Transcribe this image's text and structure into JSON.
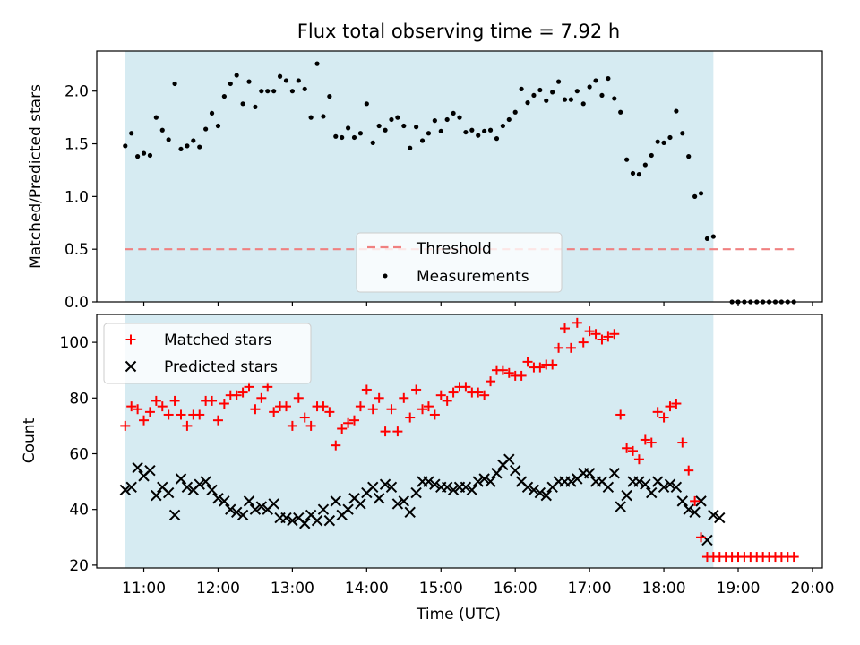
{
  "chart_data": [
    {
      "type": "scatter",
      "title": "Flux total observing time = 7.92 h",
      "xlabel": "",
      "ylabel": "Matched/Predicted stars",
      "ylim": [
        0,
        2.38
      ],
      "yticks": [
        "0.0",
        "0.5",
        "1.0",
        "1.5",
        "2.0"
      ],
      "xlim": [
        "10:22",
        "20:08"
      ],
      "shaded_span": [
        "10:45",
        "18:40"
      ],
      "shade_color": "#add8e6",
      "legend_position": "lower-center",
      "threshold": {
        "name": "Threshold",
        "value": 0.5,
        "x_range": [
          "10:45",
          "19:45"
        ],
        "color": "#f08080"
      },
      "series": [
        {
          "name": "Measurements",
          "color": "#000000",
          "x": [
            "10:45",
            "10:50",
            "10:55",
            "11:00",
            "11:05",
            "11:10",
            "11:15",
            "11:20",
            "11:25",
            "11:30",
            "11:35",
            "11:40",
            "11:45",
            "11:50",
            "11:55",
            "12:00",
            "12:05",
            "12:10",
            "12:15",
            "12:20",
            "12:25",
            "12:30",
            "12:35",
            "12:40",
            "12:45",
            "12:50",
            "12:55",
            "13:00",
            "13:05",
            "13:10",
            "13:15",
            "13:20",
            "13:25",
            "13:30",
            "13:35",
            "13:40",
            "13:45",
            "13:50",
            "13:55",
            "14:00",
            "14:05",
            "14:10",
            "14:15",
            "14:20",
            "14:25",
            "14:30",
            "14:35",
            "14:40",
            "14:45",
            "14:50",
            "14:55",
            "15:00",
            "15:05",
            "15:10",
            "15:15",
            "15:20",
            "15:25",
            "15:30",
            "15:35",
            "15:40",
            "15:45",
            "15:50",
            "15:55",
            "16:00",
            "16:05",
            "16:10",
            "16:15",
            "16:20",
            "16:25",
            "16:30",
            "16:35",
            "16:40",
            "16:45",
            "16:50",
            "16:55",
            "17:00",
            "17:05",
            "17:10",
            "17:15",
            "17:20",
            "17:25",
            "17:30",
            "17:35",
            "17:40",
            "17:45",
            "17:50",
            "17:55",
            "18:00",
            "18:05",
            "18:10",
            "18:15",
            "18:20",
            "18:25",
            "18:30",
            "18:35",
            "18:40",
            "18:55",
            "19:00",
            "19:05",
            "19:10",
            "19:15",
            "19:20",
            "19:25",
            "19:30",
            "19:35",
            "19:40",
            "19:45"
          ],
          "y": [
            1.48,
            1.6,
            1.38,
            1.41,
            1.39,
            1.75,
            1.63,
            1.54,
            2.07,
            1.45,
            1.48,
            1.53,
            1.47,
            1.64,
            1.79,
            1.67,
            1.95,
            2.07,
            2.15,
            1.88,
            2.09,
            1.85,
            2.0,
            2.0,
            2.0,
            2.14,
            2.1,
            2.0,
            2.1,
            2.02,
            1.75,
            2.26,
            1.76,
            1.95,
            1.57,
            1.56,
            1.65,
            1.56,
            1.6,
            1.88,
            1.51,
            1.67,
            1.63,
            1.73,
            1.75,
            1.67,
            1.46,
            1.66,
            1.53,
            1.6,
            1.72,
            1.62,
            1.73,
            1.79,
            1.75,
            1.61,
            1.63,
            1.58,
            1.62,
            1.63,
            1.55,
            1.67,
            1.73,
            1.8,
            2.02,
            1.89,
            1.96,
            2.01,
            1.91,
            1.99,
            2.09,
            1.92,
            1.92,
            2.0,
            1.88,
            2.04,
            2.1,
            1.96,
            2.12,
            1.93,
            1.8,
            1.35,
            1.22,
            1.21,
            1.3,
            1.39,
            1.52,
            1.51,
            1.56,
            1.81,
            1.6,
            1.38,
            1.0,
            1.03,
            0.6,
            0.62,
            0,
            0,
            0,
            0,
            0,
            0,
            0,
            0,
            0,
            0,
            0
          ]
        }
      ]
    },
    {
      "type": "scatter",
      "xlabel": "Time (UTC)",
      "ylabel": "Count",
      "ylim": [
        19,
        110
      ],
      "yticks": [
        "20",
        "40",
        "60",
        "80",
        "100"
      ],
      "xticks": [
        "11:00",
        "12:00",
        "13:00",
        "14:00",
        "15:00",
        "16:00",
        "17:00",
        "18:00",
        "19:00",
        "20:00"
      ],
      "xlim": [
        "10:22",
        "20:08"
      ],
      "shaded_span": [
        "10:45",
        "18:40"
      ],
      "shade_color": "#add8e6",
      "legend_position": "top-left",
      "series": [
        {
          "name": "Matched stars",
          "marker": "+",
          "color": "#ff0000",
          "x": [
            "10:45",
            "10:50",
            "10:55",
            "11:00",
            "11:05",
            "11:10",
            "11:15",
            "11:20",
            "11:25",
            "11:30",
            "11:35",
            "11:40",
            "11:45",
            "11:50",
            "11:55",
            "12:00",
            "12:05",
            "12:10",
            "12:15",
            "12:20",
            "12:25",
            "12:30",
            "12:35",
            "12:40",
            "12:45",
            "12:50",
            "12:55",
            "13:00",
            "13:05",
            "13:10",
            "13:15",
            "13:20",
            "13:25",
            "13:30",
            "13:35",
            "13:40",
            "13:45",
            "13:50",
            "13:55",
            "14:00",
            "14:05",
            "14:10",
            "14:15",
            "14:20",
            "14:25",
            "14:30",
            "14:35",
            "14:40",
            "14:45",
            "14:50",
            "14:55",
            "15:00",
            "15:05",
            "15:10",
            "15:15",
            "15:20",
            "15:25",
            "15:30",
            "15:35",
            "15:40",
            "15:45",
            "15:50",
            "15:55",
            "16:00",
            "16:05",
            "16:10",
            "16:15",
            "16:20",
            "16:25",
            "16:30",
            "16:35",
            "16:40",
            "16:45",
            "16:50",
            "16:55",
            "17:00",
            "17:05",
            "17:10",
            "17:15",
            "17:20",
            "17:25",
            "17:30",
            "17:35",
            "17:40",
            "17:45",
            "17:50",
            "17:55",
            "18:00",
            "18:05",
            "18:10",
            "18:15",
            "18:20",
            "18:25",
            "18:30",
            "18:35",
            "18:40",
            "18:45",
            "18:50",
            "18:55",
            "19:00",
            "19:05",
            "19:10",
            "19:15",
            "19:20",
            "19:25",
            "19:30",
            "19:35",
            "19:40",
            "19:45"
          ],
          "y": [
            70,
            77,
            76,
            72,
            75,
            79,
            77,
            74,
            79,
            74,
            70,
            74,
            74,
            79,
            79,
            72,
            78,
            81,
            81,
            82,
            84,
            76,
            80,
            84,
            75,
            77,
            77,
            70,
            80,
            73,
            70,
            77,
            77,
            75,
            63,
            69,
            71,
            72,
            77,
            83,
            76,
            80,
            68,
            76,
            68,
            80,
            73,
            83,
            76,
            77,
            74,
            81,
            79,
            82,
            84,
            84,
            82,
            82,
            81,
            86,
            90,
            90,
            89,
            88,
            88,
            93,
            91,
            91,
            92,
            92,
            98,
            105,
            98,
            107,
            100,
            104,
            103,
            101,
            102,
            103,
            74,
            62,
            61,
            58,
            65,
            64,
            75,
            73,
            77,
            78,
            64,
            54,
            43,
            30,
            23,
            23,
            23,
            23,
            23,
            23,
            23,
            23,
            23,
            23,
            23,
            23,
            23,
            23,
            23
          ]
        },
        {
          "name": "Predicted stars",
          "marker": "x",
          "color": "#000000",
          "x": [
            "10:45",
            "10:50",
            "10:55",
            "11:00",
            "11:05",
            "11:10",
            "11:15",
            "11:20",
            "11:25",
            "11:30",
            "11:35",
            "11:40",
            "11:45",
            "11:50",
            "11:55",
            "12:00",
            "12:05",
            "12:10",
            "12:15",
            "12:20",
            "12:25",
            "12:30",
            "12:35",
            "12:40",
            "12:45",
            "12:50",
            "12:55",
            "13:00",
            "13:05",
            "13:10",
            "13:15",
            "13:20",
            "13:25",
            "13:30",
            "13:35",
            "13:40",
            "13:45",
            "13:50",
            "13:55",
            "14:00",
            "14:05",
            "14:10",
            "14:15",
            "14:20",
            "14:25",
            "14:30",
            "14:35",
            "14:40",
            "14:45",
            "14:50",
            "14:55",
            "15:00",
            "15:05",
            "15:10",
            "15:15",
            "15:20",
            "15:25",
            "15:30",
            "15:35",
            "15:40",
            "15:45",
            "15:50",
            "15:55",
            "16:00",
            "16:05",
            "16:10",
            "16:15",
            "16:20",
            "16:25",
            "16:30",
            "16:35",
            "16:40",
            "16:45",
            "16:50",
            "16:55",
            "17:00",
            "17:05",
            "17:10",
            "17:15",
            "17:20",
            "17:25",
            "17:30",
            "17:35",
            "17:40",
            "17:45",
            "17:50",
            "17:55",
            "18:00",
            "18:05",
            "18:10",
            "18:15",
            "18:20",
            "18:25",
            "18:30",
            "18:35",
            "18:40",
            "18:45"
          ],
          "y": [
            47,
            48,
            55,
            52,
            54,
            45,
            48,
            46,
            38,
            51,
            48,
            47,
            49,
            50,
            47,
            44,
            43,
            40,
            39,
            38,
            43,
            40,
            41,
            40,
            42,
            37,
            37,
            36,
            37,
            35,
            38,
            36,
            40,
            36,
            43,
            38,
            40,
            44,
            42,
            46,
            48,
            44,
            49,
            48,
            42,
            43,
            39,
            46,
            50,
            50,
            49,
            48,
            48,
            47,
            48,
            48,
            47,
            50,
            51,
            50,
            53,
            56,
            58,
            54,
            50,
            48,
            47,
            46,
            45,
            48,
            50,
            50,
            50,
            51,
            53,
            53,
            50,
            50,
            48,
            53,
            41,
            45,
            50,
            50,
            49,
            46,
            50,
            48,
            49,
            48,
            43,
            40,
            39,
            43,
            29,
            38,
            37
          ]
        }
      ]
    }
  ]
}
